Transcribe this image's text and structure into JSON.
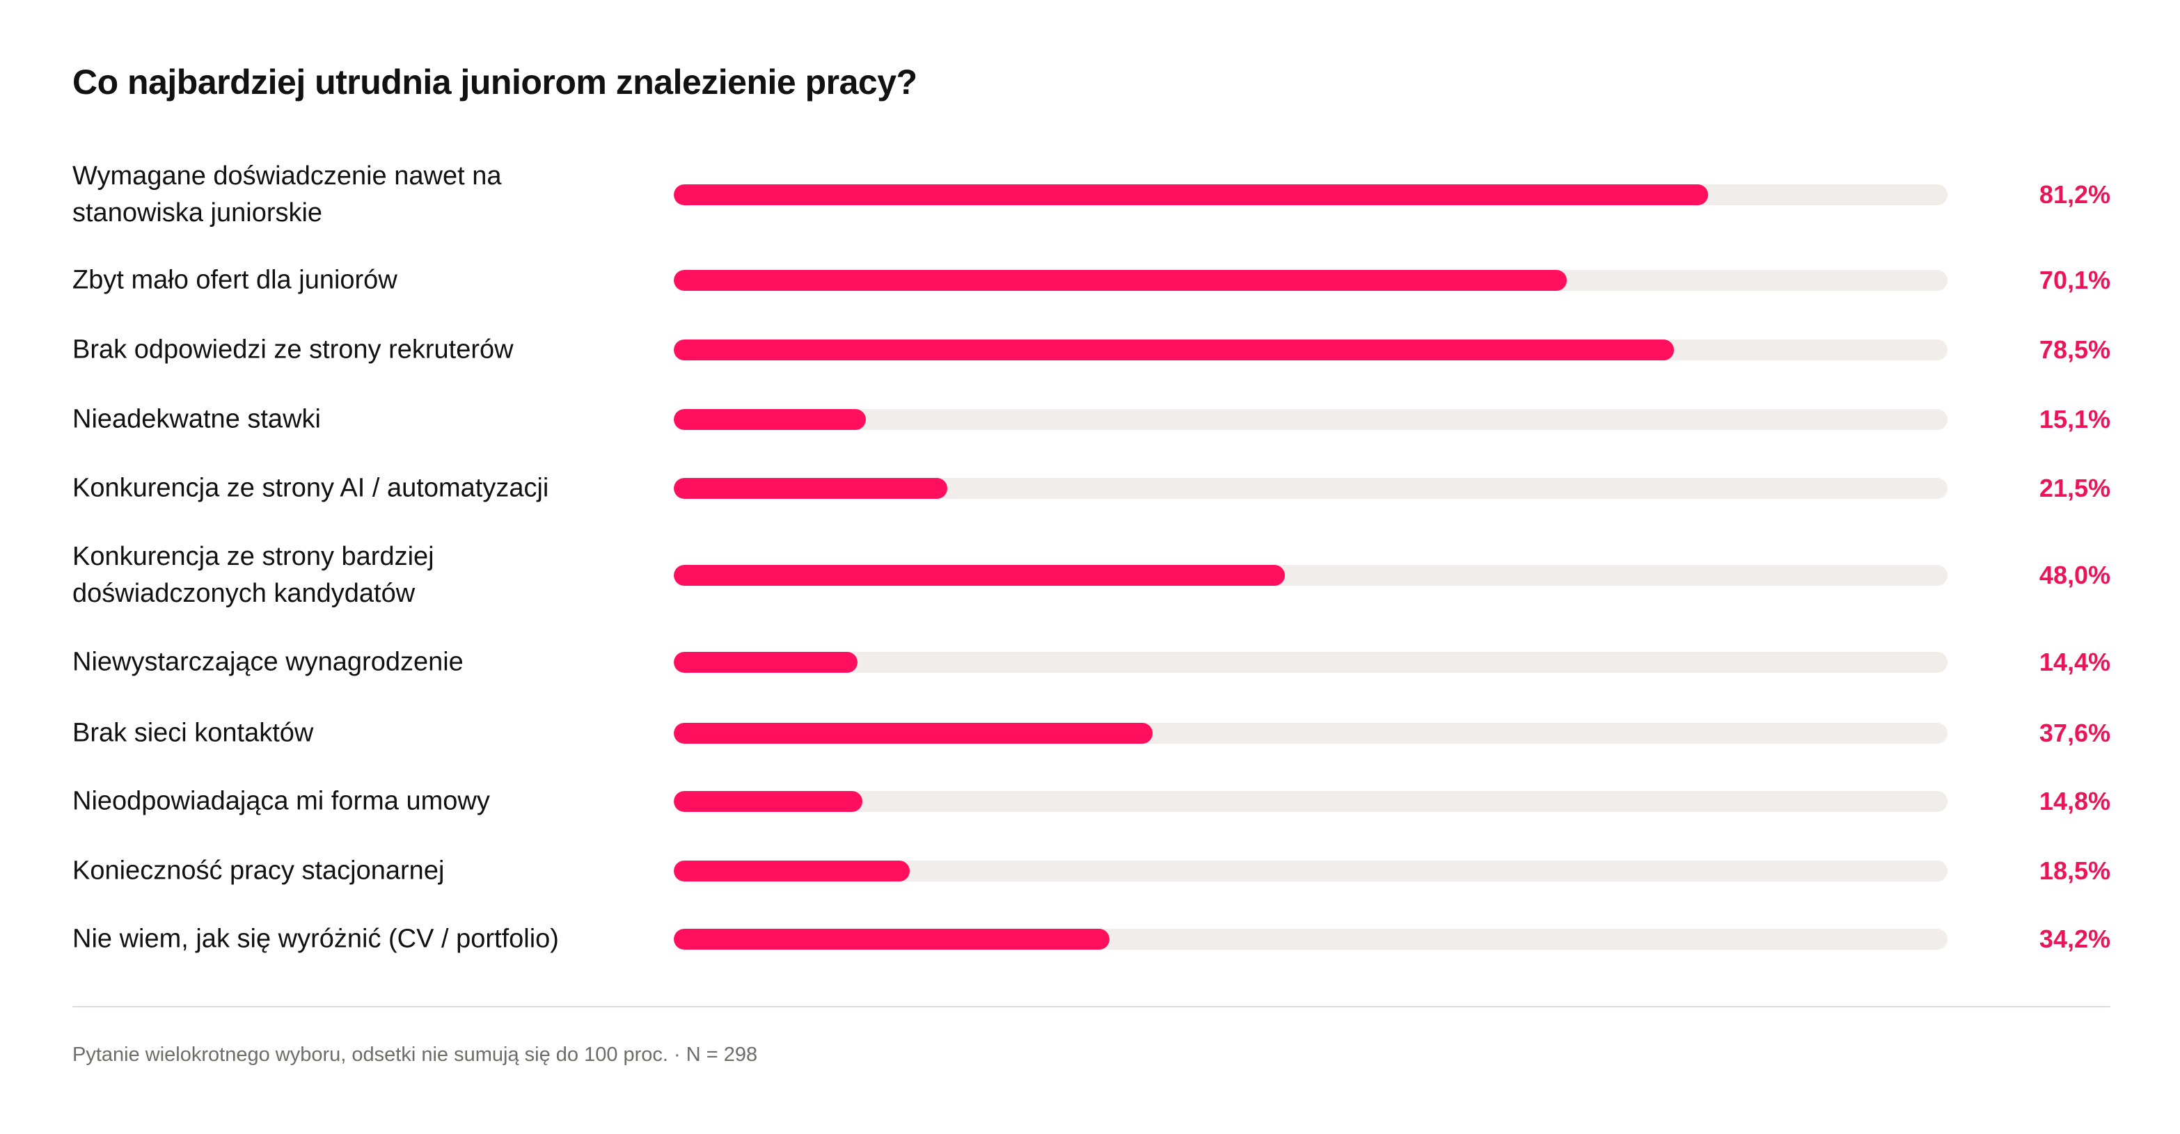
{
  "colors": {
    "bar": "#ff0f5e",
    "track": "#f0edeb",
    "value_text": "#ec1458",
    "text": "#111111",
    "footnote": "#6e6b69"
  },
  "chart_data": {
    "type": "bar",
    "orientation": "horizontal",
    "title": "Co najbardziej utrudnia juniorom znalezienie pracy?",
    "xlim": [
      0,
      100
    ],
    "unit": "%",
    "grid": false,
    "categories": [
      "Wymagane doświadczenie nawet na stanowiska juniorskie",
      "Zbyt mało ofert dla juniorów",
      "Brak odpowiedzi ze strony rekruterów",
      "Nieadekwatne stawki",
      "Konkurencja ze strony AI / automatyzacji",
      "Konkurencja ze strony bardziej doświadczonych kandydatów",
      "Niewystarczające wynagrodzenie",
      "Brak sieci kontaktów",
      "Nieodpowiadająca mi forma umowy",
      "Konieczność pracy stacjonarnej",
      "Nie wiem, jak się wyróżnić (CV / portfolio)"
    ],
    "values": [
      81.2,
      70.1,
      78.5,
      15.1,
      21.5,
      48.0,
      14.4,
      37.6,
      14.8,
      18.5,
      34.2
    ],
    "value_labels": [
      "81,2%",
      "70,1%",
      "78,5%",
      "15,1%",
      "21,5%",
      "48,0%",
      "14,4%",
      "37,6%",
      "14,8%",
      "18,5%",
      "34,2%"
    ],
    "footnote": "Pytanie wielokrotnego wyboru, odsetki nie sumują się do 100 proc. · N = 298"
  }
}
